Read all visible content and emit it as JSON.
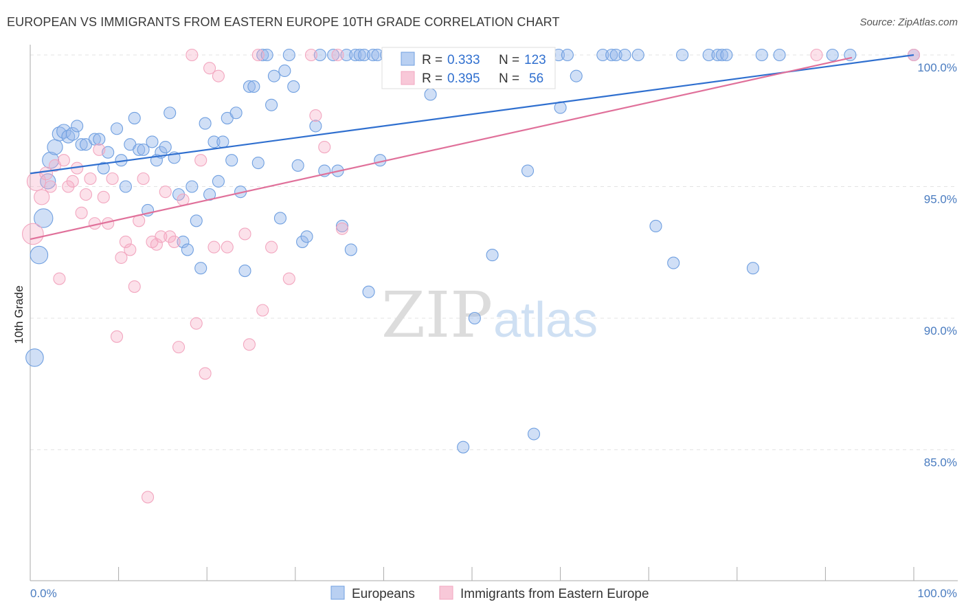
{
  "title": "EUROPEAN VS IMMIGRANTS FROM EASTERN EUROPE 10TH GRADE CORRELATION CHART",
  "source": "Source: ZipAtlas.com",
  "colors": {
    "blue": "#6f9fe0",
    "blue_line": "#2f6fcf",
    "pink": "#f2a6bf",
    "pink_line": "#e0709a",
    "tick": "#4a7cc0",
    "grid": "#e3e3e3"
  },
  "chart_data": {
    "type": "scatter",
    "title": "EUROPEAN VS IMMIGRANTS FROM EASTERN EUROPE 10TH GRADE CORRELATION CHART",
    "ylabel": "10th Grade",
    "xlabel": "",
    "xlim": [
      0,
      100
    ],
    "ylim": [
      80.5,
      100.8
    ],
    "x_tick_labels": [
      "0.0%",
      "100.0%"
    ],
    "y_ticks": [
      85,
      90,
      95,
      100
    ],
    "y_tick_labels": [
      "85.0%",
      "90.0%",
      "95.0%",
      "100.0%"
    ],
    "legend": [
      {
        "name": "Europeans",
        "r_label": "R =",
        "r": "0.333",
        "n_label": "N =",
        "n": "123"
      },
      {
        "name": "Immigrants from Eastern Europe",
        "r_label": "R =",
        "r": "0.395",
        "n_label": "N =",
        "n": "56"
      }
    ],
    "watermark": {
      "zip": "ZIP",
      "atlas": "atlas"
    },
    "series": [
      {
        "name": "Europeans",
        "color": "#6f9fe0",
        "trend": {
          "x": [
            0,
            100
          ],
          "y": [
            95.5,
            100.0
          ]
        },
        "points": [
          [
            0.5,
            88.5,
            1.5
          ],
          [
            1,
            92.4,
            1.5
          ],
          [
            1.5,
            93.8,
            1.6
          ],
          [
            2,
            95.2,
            1.3
          ],
          [
            2.3,
            96.0,
            1.4
          ],
          [
            2.8,
            96.5,
            1.3
          ],
          [
            3.3,
            97.0,
            1.2
          ],
          [
            3.8,
            97.1,
            1.2
          ],
          [
            4.3,
            96.9,
            1.1
          ],
          [
            4.8,
            97.0,
            1.1
          ],
          [
            5.3,
            97.3,
            1.0
          ],
          [
            5.8,
            96.6,
            1.0
          ],
          [
            6.3,
            96.6,
            1.0
          ],
          [
            7.3,
            96.8,
            1.0
          ],
          [
            7.8,
            96.8,
            1.0
          ],
          [
            8.3,
            95.7,
            1.0
          ],
          [
            8.8,
            96.3,
            1.0
          ],
          [
            9.8,
            97.2,
            1.0
          ],
          [
            10.3,
            96.0,
            1.0
          ],
          [
            10.8,
            95.0,
            1.0
          ],
          [
            11.3,
            96.6,
            1.0
          ],
          [
            11.8,
            97.6,
            1.0
          ],
          [
            12.3,
            96.4,
            1.0
          ],
          [
            12.8,
            96.4,
            1.0
          ],
          [
            13.3,
            94.1,
            1.0
          ],
          [
            13.8,
            96.7,
            1.0
          ],
          [
            14.3,
            96.0,
            1.0
          ],
          [
            14.8,
            96.3,
            1.0
          ],
          [
            15.3,
            96.5,
            1.0
          ],
          [
            15.8,
            97.8,
            1.0
          ],
          [
            16.3,
            96.1,
            1.0
          ],
          [
            16.8,
            94.7,
            1.0
          ],
          [
            17.3,
            92.9,
            1.0
          ],
          [
            17.8,
            92.6,
            1.0
          ],
          [
            18.3,
            95.0,
            1.0
          ],
          [
            18.8,
            93.7,
            1.0
          ],
          [
            19.3,
            91.9,
            1.0
          ],
          [
            19.8,
            97.4,
            1.0
          ],
          [
            20.3,
            94.7,
            1.0
          ],
          [
            20.8,
            96.7,
            1.0
          ],
          [
            21.3,
            95.2,
            1.0
          ],
          [
            21.8,
            96.7,
            1.0
          ],
          [
            22.3,
            97.6,
            1.0
          ],
          [
            22.8,
            96.0,
            1.0
          ],
          [
            23.3,
            97.8,
            1.0
          ],
          [
            23.8,
            94.8,
            1.0
          ],
          [
            24.3,
            91.8,
            1.0
          ],
          [
            24.8,
            98.8,
            1.0
          ],
          [
            25.3,
            98.8,
            1.0
          ],
          [
            25.8,
            95.9,
            1.0
          ],
          [
            26.3,
            100.0,
            1.0
          ],
          [
            26.8,
            100.0,
            1.0
          ],
          [
            27.3,
            98.1,
            1.0
          ],
          [
            27.6,
            99.2,
            1.0
          ],
          [
            28.3,
            93.8,
            1.0
          ],
          [
            28.8,
            99.4,
            1.0
          ],
          [
            29.3,
            100.0,
            1.0
          ],
          [
            29.8,
            98.8,
            1.0
          ],
          [
            30.3,
            95.8,
            1.0
          ],
          [
            30.8,
            92.9,
            1.0
          ],
          [
            31.3,
            93.1,
            1.0
          ],
          [
            32.3,
            97.3,
            1.0
          ],
          [
            32.8,
            100.0,
            1.0
          ],
          [
            33.3,
            95.6,
            1.0
          ],
          [
            34.3,
            100.0,
            1.0
          ],
          [
            34.8,
            95.6,
            1.0
          ],
          [
            35.3,
            93.5,
            1.0
          ],
          [
            35.8,
            100.0,
            1.0
          ],
          [
            36.3,
            92.6,
            1.0
          ],
          [
            36.8,
            100.0,
            1.0
          ],
          [
            37.3,
            100.0,
            1.0
          ],
          [
            37.8,
            100.0,
            1.0
          ],
          [
            38.3,
            91.0,
            1.0
          ],
          [
            38.8,
            100.0,
            1.0
          ],
          [
            39.3,
            100.0,
            1.0
          ],
          [
            39.6,
            96.0,
            1.0
          ],
          [
            40.3,
            100.0,
            1.0
          ],
          [
            41.3,
            100.0,
            1.0
          ],
          [
            42.3,
            100.0,
            1.0
          ],
          [
            43.3,
            100.0,
            1.0
          ],
          [
            44.3,
            100.0,
            1.0
          ],
          [
            45.3,
            98.5,
            1.0
          ],
          [
            45.8,
            100.0,
            1.0
          ],
          [
            46.8,
            100.0,
            1.0
          ],
          [
            47.8,
            100.0,
            1.0
          ],
          [
            48.8,
            100.0,
            1.0
          ],
          [
            49.8,
            100.0,
            1.0
          ],
          [
            50.3,
            90.0,
            1.0
          ],
          [
            50.8,
            100.0,
            1.0
          ],
          [
            51.8,
            100.0,
            1.0
          ],
          [
            52.3,
            92.4,
            1.0
          ],
          [
            52.8,
            100.0,
            1.0
          ],
          [
            53.8,
            100.0,
            1.0
          ],
          [
            54.8,
            100.0,
            1.0
          ],
          [
            55.8,
            100.0,
            1.0
          ],
          [
            56.3,
            95.6,
            1.0
          ],
          [
            56.8,
            100.0,
            1.0
          ],
          [
            57.8,
            100.0,
            1.0
          ],
          [
            58.8,
            100.0,
            1.0
          ],
          [
            59.8,
            100.0,
            1.0
          ],
          [
            60.8,
            100.0,
            1.0
          ],
          [
            61.8,
            99.2,
            1.0
          ],
          [
            64.8,
            100.0,
            1.0
          ],
          [
            65.8,
            100.0,
            1.0
          ],
          [
            66.3,
            100.0,
            1.0
          ],
          [
            67.3,
            100.0,
            1.0
          ],
          [
            68.8,
            100.0,
            1.0
          ],
          [
            70.8,
            93.5,
            1.0
          ],
          [
            72.8,
            92.1,
            1.0
          ],
          [
            73.8,
            100.0,
            1.0
          ],
          [
            76.8,
            100.0,
            1.0
          ],
          [
            77.8,
            100.0,
            1.0
          ],
          [
            78.3,
            100.0,
            1.0
          ],
          [
            78.8,
            100.0,
            1.0
          ],
          [
            81.8,
            91.9,
            1.0
          ],
          [
            82.8,
            100.0,
            1.0
          ],
          [
            84.8,
            100.0,
            1.0
          ],
          [
            90.8,
            100.0,
            1.0
          ],
          [
            92.8,
            100.0,
            1.0
          ],
          [
            100.0,
            100.0,
            1.0
          ],
          [
            49.0,
            85.1,
            1.0
          ],
          [
            57.0,
            85.6,
            1.0
          ],
          [
            60.0,
            98.0,
            1.0
          ]
        ]
      },
      {
        "name": "Immigrants from Eastern Europe",
        "color": "#f2a6bf",
        "trend": {
          "x": [
            0,
            93
          ],
          "y": [
            93.0,
            99.9
          ]
        },
        "points": [
          [
            0.3,
            93.2,
            1.8
          ],
          [
            0.7,
            95.2,
            1.6
          ],
          [
            1.3,
            94.6,
            1.3
          ],
          [
            1.8,
            95.5,
            1.1
          ],
          [
            2.3,
            95.0,
            1.0
          ],
          [
            2.8,
            95.8,
            1.0
          ],
          [
            3.3,
            91.5,
            1.0
          ],
          [
            3.8,
            96.0,
            1.0
          ],
          [
            4.3,
            95.0,
            1.0
          ],
          [
            4.8,
            95.2,
            1.0
          ],
          [
            5.3,
            95.7,
            1.0
          ],
          [
            5.8,
            94.0,
            1.0
          ],
          [
            6.3,
            94.7,
            1.0
          ],
          [
            6.8,
            95.3,
            1.0
          ],
          [
            7.3,
            93.6,
            1.0
          ],
          [
            7.8,
            96.4,
            1.0
          ],
          [
            8.3,
            94.6,
            1.0
          ],
          [
            8.8,
            93.6,
            1.0
          ],
          [
            9.3,
            95.3,
            1.0
          ],
          [
            9.8,
            89.3,
            1.0
          ],
          [
            10.3,
            92.3,
            1.0
          ],
          [
            10.8,
            92.9,
            1.0
          ],
          [
            11.3,
            92.6,
            1.0
          ],
          [
            11.8,
            91.2,
            1.0
          ],
          [
            12.3,
            93.7,
            1.0
          ],
          [
            12.8,
            95.3,
            1.0
          ],
          [
            13.3,
            83.2,
            1.0
          ],
          [
            13.8,
            92.9,
            1.0
          ],
          [
            14.3,
            92.8,
            1.0
          ],
          [
            14.8,
            93.1,
            1.0
          ],
          [
            15.3,
            94.8,
            1.0
          ],
          [
            15.8,
            93.1,
            1.0
          ],
          [
            16.3,
            92.9,
            1.0
          ],
          [
            16.8,
            88.9,
            1.0
          ],
          [
            17.3,
            94.5,
            1.0
          ],
          [
            18.3,
            100.0,
            1.0
          ],
          [
            18.8,
            89.8,
            1.0
          ],
          [
            19.3,
            96.0,
            1.0
          ],
          [
            19.8,
            87.9,
            1.0
          ],
          [
            20.3,
            99.5,
            1.0
          ],
          [
            20.8,
            92.7,
            1.0
          ],
          [
            21.3,
            99.2,
            1.0
          ],
          [
            22.3,
            92.7,
            1.0
          ],
          [
            24.3,
            93.2,
            1.0
          ],
          [
            24.8,
            89.0,
            1.0
          ],
          [
            25.8,
            100.0,
            1.0
          ],
          [
            26.3,
            90.3,
            1.0
          ],
          [
            27.3,
            92.7,
            1.0
          ],
          [
            29.3,
            91.5,
            1.0
          ],
          [
            31.8,
            100.0,
            1.0
          ],
          [
            32.3,
            97.7,
            1.0
          ],
          [
            33.3,
            96.5,
            1.0
          ],
          [
            34.8,
            100.0,
            1.0
          ],
          [
            35.3,
            93.4,
            1.0
          ],
          [
            89.0,
            100.0,
            1.0
          ],
          [
            100.0,
            100.0,
            1.0
          ]
        ]
      }
    ]
  }
}
